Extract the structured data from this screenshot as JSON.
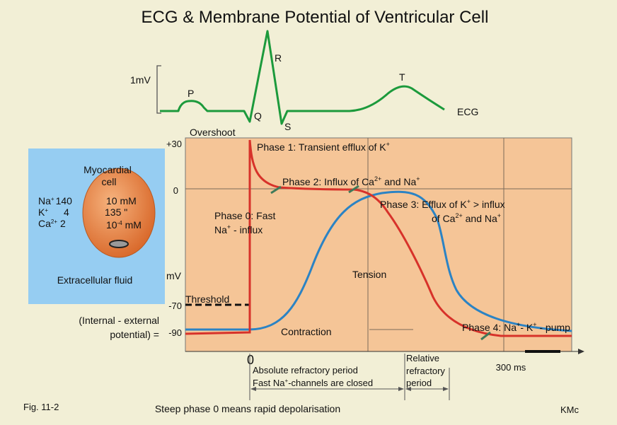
{
  "title": "ECG & Membrane Potential of Ventricular Cell",
  "ecg": {
    "scale_label": "1mV",
    "wave_p": "P",
    "wave_q": "Q",
    "wave_r": "R",
    "wave_s": "S",
    "wave_t": "T",
    "trace_label": "ECG",
    "trace_color": "#1c9a3c"
  },
  "cell": {
    "name_line1": "Myocardial",
    "name_line2": "cell",
    "ions_outside": [
      {
        "ion": "Na",
        "charge": "+",
        "value": "140"
      },
      {
        "ion": "K",
        "charge": "+",
        "value": "4"
      },
      {
        "ion": "Ca",
        "charge": "2+",
        "value": "2"
      }
    ],
    "ions_inside": [
      {
        "main": "10 mM",
        "exp": "",
        "rest": ""
      },
      {
        "main": "135  \"",
        "exp": "",
        "rest": ""
      },
      {
        "main": "10",
        "exp": "-4",
        "rest": " mM"
      }
    ],
    "fluid_label": "Extracellular fluid",
    "panel_color": "#96cdf2",
    "cell_color": "#e07b3a"
  },
  "chart": {
    "y_unit": "mV",
    "y_ticks": [
      {
        "label": "+30",
        "value": 30
      },
      {
        "label": "0",
        "value": 0
      },
      {
        "label": "-70",
        "value": -70
      },
      {
        "label": "-90",
        "value": -90
      }
    ],
    "y_range": [
      -115,
      35
    ],
    "overshoot_label": "Overshoot",
    "threshold_label": "Threshold",
    "potential_line1": "(Internal - external",
    "potential_line2": "potential) =",
    "x_origin_label": "0",
    "x_scale_label": "300 ms",
    "panel_color": "#f5c597",
    "membrane_color": "#d7322a",
    "tension_color": "#2b83c4"
  },
  "phases": {
    "phase1": {
      "before": "Phase 1: Transient efflux of K",
      "sup": "+",
      "after": ""
    },
    "phase2": {
      "a": "Phase 2: Influx of Ca",
      "a_sup": "2+",
      "b": " and Na",
      "b_sup": "+"
    },
    "phase0_line1": "Phase 0: Fast",
    "phase0_line2": {
      "a": "Na",
      "a_sup": "+",
      "b": " - influx"
    },
    "phase3_line1": {
      "a": "Phase 3: Efflux of K",
      "a_sup": "+",
      "b": " > influx"
    },
    "phase3_line2": {
      "a": "of Ca",
      "a_sup": "2+",
      "b": " and Na",
      "b_sup": "+"
    },
    "phase4": {
      "a": "Phase 4: Na",
      "a_sup": "+",
      "b": "- K",
      "b_sup": "+",
      "c": " - pump"
    },
    "tension_label": "Tension",
    "contraction_label": "Contraction"
  },
  "periods": {
    "absolute_line1": "Absolute refractory period",
    "absolute_line2": {
      "a": "Fast Na",
      "a_sup": "+",
      "b": "-channels are closed"
    },
    "relative_line1": "Relative",
    "relative_line2": "refractory",
    "relative_line3": "period"
  },
  "footer": {
    "fig": "Fig. 11-2",
    "caption": "Steep phase 0 means rapid depolarisation",
    "author": "KMc"
  }
}
